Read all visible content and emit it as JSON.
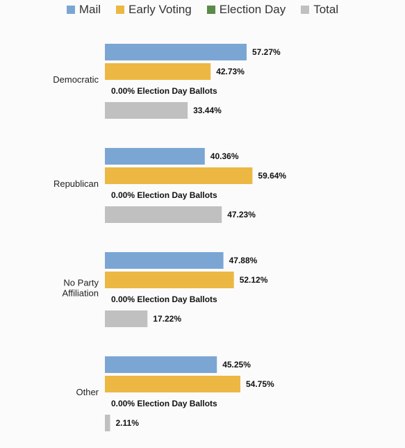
{
  "chart_data": {
    "type": "bar",
    "orientation": "horizontal",
    "categories": [
      "Democratic",
      "Republican",
      "No Party Affiliation",
      "Other"
    ],
    "category_lines": [
      [
        "Democratic"
      ],
      [
        "Republican"
      ],
      [
        "No Party",
        "Affiliation"
      ],
      [
        "Other"
      ]
    ],
    "series": [
      {
        "name": "Mail",
        "color": "#7ba6d4",
        "values": [
          57.27,
          40.36,
          47.88,
          45.25
        ],
        "labels": [
          "57.27%",
          "40.36%",
          "47.88%",
          "45.25%"
        ]
      },
      {
        "name": "Early Voting",
        "color": "#ecb843",
        "values": [
          42.73,
          59.64,
          52.12,
          54.75
        ],
        "labels": [
          "42.73%",
          "59.64%",
          "52.12%",
          "54.75%"
        ]
      },
      {
        "name": "Election Day",
        "color": "#5b8a4a",
        "values": [
          0,
          0,
          0,
          0
        ],
        "labels": [
          "0.00% Election Day Ballots",
          "0.00% Election Day Ballots",
          "0.00% Election Day Ballots",
          "0.00% Election Day Ballots"
        ]
      },
      {
        "name": "Total",
        "color": "#c0c0c0",
        "values": [
          33.44,
          47.23,
          17.22,
          2.11
        ],
        "labels": [
          "33.44%",
          "47.23%",
          "17.22%",
          "2.11%"
        ]
      }
    ],
    "xlim": [
      0,
      100
    ],
    "legend_position": "top",
    "grid": false
  }
}
